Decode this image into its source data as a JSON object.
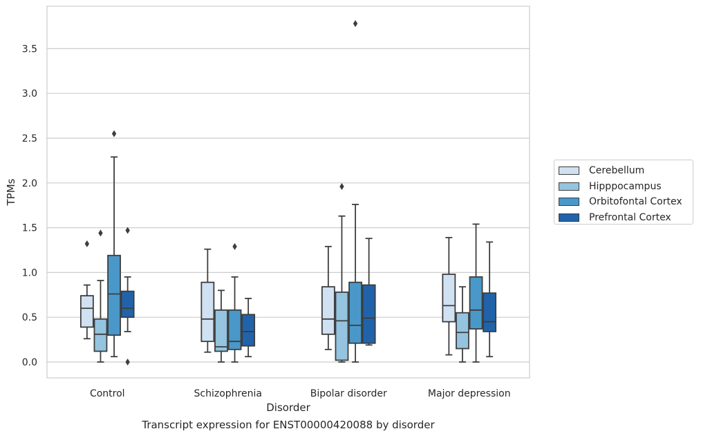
{
  "chart_data": {
    "type": "box",
    "caption": "Transcript expression for ENST00000420088 by disorder",
    "xlabel": "Disorder",
    "ylabel": "TPMs",
    "ylim": [
      -0.18,
      3.98
    ],
    "yticks": [
      "0.0",
      "0.5",
      "1.0",
      "1.5",
      "2.0",
      "2.5",
      "3.0",
      "3.5"
    ],
    "ytick_values": [
      0,
      0.5,
      1.0,
      1.5,
      2.0,
      2.5,
      3.0,
      3.5
    ],
    "grid": "horizontal",
    "legend_position": "right",
    "categories": [
      "Control",
      "Schizophrenia",
      "Bipolar disorder",
      "Major depression"
    ],
    "series": [
      {
        "name": "Cerebellum",
        "color": "#d0e1f2",
        "boxes": [
          {
            "whislo": 0.26,
            "q1": 0.39,
            "med": 0.6,
            "q3": 0.74,
            "whishi": 0.86,
            "fliers": [
              1.32
            ]
          },
          {
            "whislo": 0.11,
            "q1": 0.23,
            "med": 0.48,
            "q3": 0.89,
            "whishi": 1.26,
            "fliers": []
          },
          {
            "whislo": 0.14,
            "q1": 0.31,
            "med": 0.48,
            "q3": 0.84,
            "whishi": 1.29,
            "fliers": []
          },
          {
            "whislo": 0.08,
            "q1": 0.45,
            "med": 0.63,
            "q3": 0.98,
            "whishi": 1.39,
            "fliers": []
          }
        ]
      },
      {
        "name": "Hipppocampus",
        "color": "#94c4df",
        "boxes": [
          {
            "whislo": 0.0,
            "q1": 0.12,
            "med": 0.31,
            "q3": 0.48,
            "whishi": 0.91,
            "fliers": [
              1.44
            ]
          },
          {
            "whislo": 0.0,
            "q1": 0.12,
            "med": 0.17,
            "q3": 0.58,
            "whishi": 0.8,
            "fliers": []
          },
          {
            "whislo": 0.0,
            "q1": 0.02,
            "med": 0.46,
            "q3": 0.78,
            "whishi": 1.63,
            "fliers": [
              1.96
            ]
          },
          {
            "whislo": 0.0,
            "q1": 0.15,
            "med": 0.33,
            "q3": 0.55,
            "whishi": 0.84,
            "fliers": []
          }
        ]
      },
      {
        "name": "Orbitofontal Cortex",
        "color": "#4a98c9",
        "boxes": [
          {
            "whislo": 0.06,
            "q1": 0.3,
            "med": 0.76,
            "q3": 1.19,
            "whishi": 2.29,
            "fliers": [
              2.55
            ]
          },
          {
            "whislo": 0.0,
            "q1": 0.14,
            "med": 0.23,
            "q3": 0.58,
            "whishi": 0.95,
            "fliers": [
              1.29
            ]
          },
          {
            "whislo": 0.0,
            "q1": 0.21,
            "med": 0.41,
            "q3": 0.89,
            "whishi": 1.76,
            "fliers": [
              3.78
            ]
          },
          {
            "whislo": 0.0,
            "q1": 0.37,
            "med": 0.58,
            "q3": 0.95,
            "whishi": 1.54,
            "fliers": []
          }
        ]
      },
      {
        "name": "Prefrontal Cortex",
        "color": "#2163aa",
        "boxes": [
          {
            "whislo": 0.34,
            "q1": 0.5,
            "med": 0.6,
            "q3": 0.79,
            "whishi": 0.95,
            "fliers": [
              1.47,
              0.0
            ]
          },
          {
            "whislo": 0.06,
            "q1": 0.18,
            "med": 0.34,
            "q3": 0.53,
            "whishi": 0.71,
            "fliers": []
          },
          {
            "whislo": 0.19,
            "q1": 0.21,
            "med": 0.49,
            "q3": 0.86,
            "whishi": 1.38,
            "fliers": []
          },
          {
            "whislo": 0.06,
            "q1": 0.34,
            "med": 0.45,
            "q3": 0.77,
            "whishi": 1.34,
            "fliers": []
          }
        ]
      }
    ]
  }
}
